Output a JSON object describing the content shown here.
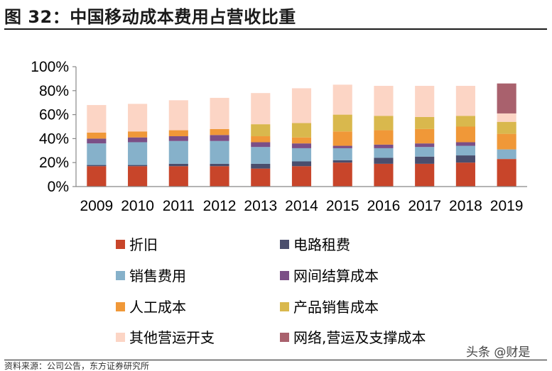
{
  "header": {
    "title": "图 32：中国移动成本费用占营收比重"
  },
  "footer": {
    "source": "资料来源：公司公告，东方证券研究所"
  },
  "watermark": {
    "text": "头条 @财是"
  },
  "chart_data": {
    "type": "bar",
    "stacked": true,
    "categories": [
      "2009",
      "2010",
      "2011",
      "2012",
      "2013",
      "2014",
      "2015",
      "2016",
      "2017",
      "2018",
      "2019"
    ],
    "y_ticks": [
      "0%",
      "20%",
      "40%",
      "60%",
      "80%",
      "100%"
    ],
    "ylim": [
      0,
      100
    ],
    "grid": false,
    "legend_position": "bottom",
    "series": [
      {
        "name": "折旧",
        "color": "#C8452A",
        "values": [
          17,
          17,
          17,
          17,
          15,
          17,
          20,
          19,
          19,
          20,
          23
        ]
      },
      {
        "name": "电路租费",
        "color": "#4A4E6D",
        "values": [
          1,
          1,
          2,
          2,
          4,
          4,
          2,
          5,
          6,
          6,
          0
        ]
      },
      {
        "name": "销售费用",
        "color": "#86B1CA",
        "values": [
          18,
          19,
          19,
          19,
          14,
          11,
          10,
          8,
          8,
          8,
          8
        ]
      },
      {
        "name": "网间结算成本",
        "color": "#7B4F86",
        "values": [
          4,
          4,
          4,
          5,
          4,
          4,
          2,
          3,
          3,
          3,
          0
        ]
      },
      {
        "name": "人工成本",
        "color": "#F09838",
        "values": [
          5,
          5,
          5,
          5,
          5,
          5,
          12,
          12,
          12,
          13,
          13
        ]
      },
      {
        "name": "产品销售成本",
        "color": "#D9B84D",
        "values": [
          0,
          0,
          0,
          0,
          10,
          12,
          14,
          12,
          10,
          9,
          10
        ]
      },
      {
        "name": "其他营运开支",
        "color": "#FCD5C5",
        "values": [
          23,
          23,
          25,
          26,
          26,
          29,
          25,
          25,
          26,
          25,
          7
        ]
      },
      {
        "name": "网络,营运及支撑成本",
        "color": "#A9616D",
        "values": [
          0,
          0,
          0,
          0,
          0,
          0,
          0,
          0,
          0,
          0,
          25
        ]
      }
    ]
  }
}
